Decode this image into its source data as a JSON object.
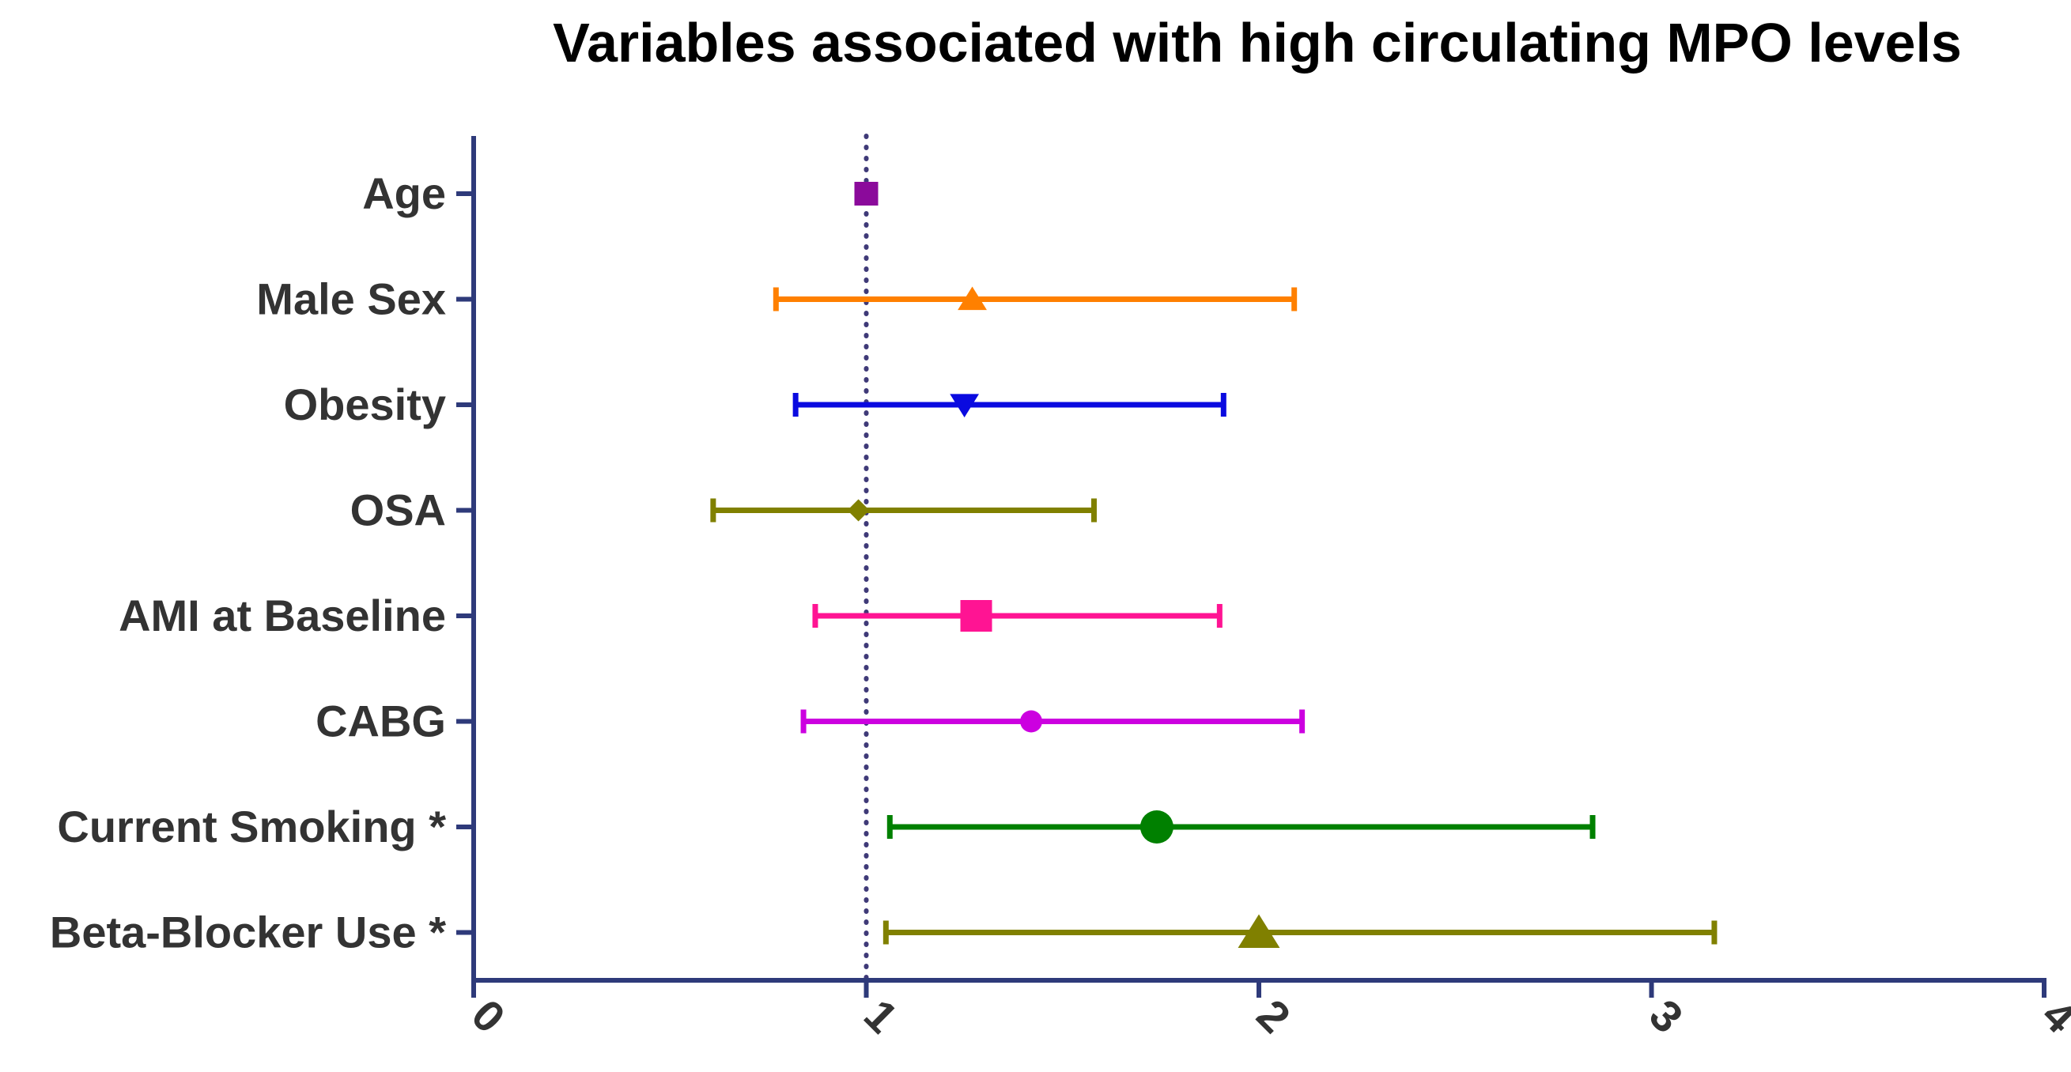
{
  "chart_data": {
    "type": "forest",
    "title": "Variables associated with high circulating MPO levels",
    "xlabel": "",
    "ylabel": "",
    "xlim": [
      0,
      4
    ],
    "x_ticks": [
      "0",
      "1",
      "2",
      "3",
      "4"
    ],
    "reference_line": 1,
    "axis_color": "#2e3a7a",
    "reference_line_color": "#3f3a78",
    "items": [
      {
        "label": "Age",
        "estimate": 1.0,
        "low": 1.0,
        "high": 1.0,
        "marker": "square",
        "marker_size": "small",
        "color": "#8b0a9b"
      },
      {
        "label": "Male Sex",
        "estimate": 1.27,
        "low": 0.77,
        "high": 2.09,
        "marker": "triangle-up",
        "marker_size": "small",
        "color": "#ff8000"
      },
      {
        "label": "Obesity",
        "estimate": 1.25,
        "low": 0.82,
        "high": 1.91,
        "marker": "triangle-down",
        "marker_size": "small",
        "color": "#0a0ae0"
      },
      {
        "label": "OSA",
        "estimate": 0.98,
        "low": 0.61,
        "high": 1.58,
        "marker": "diamond",
        "marker_size": "small",
        "color": "#808000"
      },
      {
        "label": "AMI at Baseline",
        "estimate": 1.28,
        "low": 0.87,
        "high": 1.9,
        "marker": "square",
        "marker_size": "large",
        "color": "#ff1493"
      },
      {
        "label": "CABG",
        "estimate": 1.42,
        "low": 0.84,
        "high": 2.11,
        "marker": "circle",
        "marker_size": "small",
        "color": "#cc00e0"
      },
      {
        "label": "Current Smoking *",
        "estimate": 1.74,
        "low": 1.06,
        "high": 2.85,
        "marker": "circle",
        "marker_size": "large",
        "color": "#008000"
      },
      {
        "label": "Beta-Blocker Use *",
        "estimate": 2.0,
        "low": 1.05,
        "high": 3.16,
        "marker": "triangle-up",
        "marker_size": "large",
        "color": "#808000"
      }
    ]
  }
}
